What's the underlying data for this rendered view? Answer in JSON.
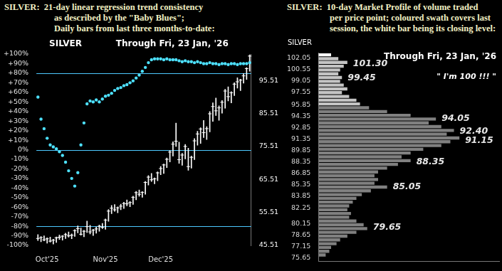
{
  "chart_data": [
    {
      "type": "bar",
      "title": [
        "SILVER:  21-day linear regression trend consistency",
        "as described by the \"Baby Blues\";",
        "Daily bars from last three months-to-date:"
      ],
      "annotations": [
        {
          "text": "SILVER"
        },
        {
          "text": "Through Fri, 23 Jan, '26"
        }
      ],
      "categories": [
        null,
        null,
        null,
        "Oct'25",
        null,
        null,
        null,
        null,
        null,
        null,
        null,
        null,
        null,
        null,
        null,
        null,
        null,
        null,
        null,
        null,
        null,
        null,
        "Nov'25",
        null,
        null,
        null,
        null,
        null,
        null,
        null,
        null,
        null,
        null,
        null,
        null,
        null,
        null,
        null,
        null,
        null,
        "Dec'25",
        null,
        null,
        null,
        null,
        null,
        null,
        null,
        null,
        null,
        null,
        null,
        null,
        null,
        null,
        null,
        null,
        null,
        null,
        null,
        null,
        null,
        null,
        null,
        null,
        null,
        null,
        null,
        null,
        null
      ],
      "series": [
        {
          "type": "bar",
          "axis": "y2",
          "color": "#ffffff",
          "low": [
            47.0,
            46.6,
            46.9,
            46.2,
            46.5,
            45.9,
            46.4,
            47.3,
            47.1,
            47.6,
            48.0,
            47.5,
            48.2,
            49.3,
            48.6,
            48.1,
            49.4,
            49.0,
            48.5,
            49.2,
            49.8,
            50.6,
            50.4,
            52.8,
            55.1,
            55.8,
            55.4,
            56.3,
            56.7,
            57.5,
            57.2,
            57.9,
            59.3,
            60.4,
            60.1,
            61.0,
            63.8,
            64.9,
            64.2,
            65.1,
            66.9,
            67.3,
            69.1,
            70.8,
            72.6,
            75.5,
            70.4,
            69.8,
            71.7,
            68.3,
            68.9,
            71.5,
            75.9,
            76.4,
            78.2,
            77.6,
            79.9,
            83.1,
            84.9,
            83.4,
            85.6,
            87.1,
            89.3,
            88.7,
            90.9,
            93.2,
            92.4,
            94.7,
            95.8,
            98.3
          ],
          "high": [
            48.8,
            48.2,
            48.4,
            47.8,
            48.0,
            47.4,
            48.1,
            48.7,
            48.5,
            49.2,
            49.6,
            49.0,
            50.3,
            51.4,
            50.8,
            50.1,
            52.9,
            51.6,
            50.4,
            51.1,
            51.7,
            52.2,
            53.5,
            56.4,
            57.6,
            57.9,
            57.2,
            58.0,
            58.6,
            59.3,
            58.8,
            60.4,
            61.9,
            62.3,
            61.8,
            64.9,
            66.7,
            67.3,
            66.0,
            67.8,
            69.4,
            70.2,
            72.0,
            74.3,
            76.9,
            82.6,
            76.8,
            73.4,
            76.1,
            75.0,
            72.6,
            77.9,
            80.1,
            81.2,
            83.4,
            81.5,
            86.1,
            88.7,
            90.2,
            87.8,
            89.4,
            92.8,
            93.6,
            92.1,
            94.8,
            96.3,
            95.9,
            97.6,
            99.4,
            103.3
          ],
          "close": [
            47.6,
            47.9,
            47.2,
            47.5,
            46.8,
            47.1,
            47.8,
            48.0,
            48.3,
            48.8,
            48.4,
            48.6,
            50.0,
            50.6,
            48.9,
            49.8,
            51.2,
            49.6,
            50.1,
            50.5,
            51.3,
            51.0,
            53.2,
            55.9,
            56.8,
            56.3,
            56.9,
            57.4,
            58.2,
            58.1,
            58.5,
            60.1,
            61.5,
            61.0,
            61.6,
            64.6,
            66.2,
            65.4,
            65.7,
            67.5,
            68.8,
            69.9,
            71.6,
            73.8,
            76.2,
            77.1,
            71.5,
            72.9,
            75.5,
            69.4,
            72.2,
            77.2,
            79.3,
            80.8,
            79.7,
            80.9,
            85.4,
            87.6,
            86.3,
            87.2,
            88.9,
            92.3,
            90.6,
            91.8,
            94.4,
            95.1,
            95.6,
            96.9,
            99.1,
            102.9
          ]
        },
        {
          "type": "scatter",
          "color": "#4de1ff",
          "marker": "circle",
          "values": [
            55,
            32,
            22,
            12,
            5,
            3,
            1,
            -2,
            -6,
            -13,
            -22,
            -30,
            -38,
            -24,
            5,
            28,
            48,
            51,
            50,
            52,
            50,
            53,
            56,
            57,
            59,
            62,
            64,
            65,
            67,
            68,
            70,
            72,
            75,
            78,
            82,
            86,
            91,
            94,
            95,
            95,
            95,
            94,
            95,
            94,
            94,
            94,
            93,
            92,
            93,
            92,
            92,
            91,
            92,
            91,
            90,
            90,
            91,
            90,
            90,
            89,
            90,
            90,
            89,
            90,
            90,
            89,
            90,
            90,
            90,
            91
          ]
        }
      ],
      "ylim": [
        -100,
        100
      ],
      "yticks": [
        {
          "value": -100,
          "label": "-100%"
        },
        {
          "value": -90,
          "label": "-90%"
        },
        {
          "value": -80,
          "label": "-80%"
        },
        {
          "value": -70,
          "label": "-70%"
        },
        {
          "value": -60,
          "label": "-60%"
        },
        {
          "value": -50,
          "label": "-50%"
        },
        {
          "value": -40,
          "label": "-40%"
        },
        {
          "value": -30,
          "label": "-30%"
        },
        {
          "value": -20,
          "label": "-20%"
        },
        {
          "value": -10,
          "label": "-10%"
        },
        {
          "value": 0,
          "label": "0%"
        },
        {
          "value": 10,
          "label": "+10%"
        },
        {
          "value": 20,
          "label": "+20%"
        },
        {
          "value": 30,
          "label": "+30%"
        },
        {
          "value": 40,
          "label": "+40%"
        },
        {
          "value": 50,
          "label": "+50%"
        },
        {
          "value": 60,
          "label": "+60%"
        },
        {
          "value": 70,
          "label": "+70%"
        },
        {
          "value": 80,
          "label": "+80%"
        },
        {
          "value": 90,
          "label": "+90%"
        },
        {
          "value": 100,
          "label": "+100%"
        }
      ],
      "y2lim": [
        45.51,
        103.51
      ],
      "y2ticks": [
        45.51,
        55.51,
        65.51,
        75.51,
        85.51,
        95.51
      ],
      "hlines": [
        80,
        0,
        -80
      ],
      "grid": false
    },
    {
      "type": "bar",
      "orientation": "horizontal",
      "title": [
        "SILVER:  10-day Market Profile of volume traded",
        "per price point; coloured swath covers last",
        "session, the white bar being its closing level:"
      ],
      "annotations": [
        {
          "text": "SILVER"
        },
        {
          "text": "Through Fri, 23 Jan, '26"
        },
        {
          "text": "\" I'm 100 !!! \""
        }
      ],
      "y": [
        102.5,
        102.0,
        101.5,
        101.0,
        100.5,
        100.0,
        99.5,
        99.0,
        98.5,
        98.0,
        97.5,
        97.0,
        96.5,
        96.0,
        95.5,
        95.0,
        94.5,
        94.0,
        93.5,
        93.0,
        92.5,
        92.0,
        91.5,
        91.0,
        90.5,
        90.0,
        89.5,
        89.0,
        88.5,
        88.0,
        87.5,
        87.0,
        86.5,
        86.0,
        85.5,
        85.0,
        84.5,
        84.0,
        83.5,
        83.0,
        82.5,
        82.0,
        81.5,
        81.0,
        80.5,
        80.0,
        79.5,
        79.0,
        78.5,
        78.0,
        77.5,
        77.0,
        76.5,
        76.0
      ],
      "values": [
        7,
        11,
        16,
        14,
        12,
        11,
        13,
        12,
        14,
        16,
        13,
        17,
        21,
        23,
        28,
        38,
        51,
        65,
        61,
        68,
        75,
        71,
        78,
        73,
        68,
        58,
        51,
        46,
        51,
        44,
        38,
        33,
        31,
        33,
        31,
        38,
        29,
        24,
        21,
        19,
        17,
        16,
        18,
        17,
        21,
        25,
        27,
        21,
        16,
        12,
        10,
        7,
        6,
        4
      ],
      "colors": [
        "#ffffff",
        "#c4c4c4",
        "#c4c4c4",
        "#c4c4c4",
        "#c4c4c4",
        "#c4c4c4",
        "#c4c4c4",
        "#c4c4c4",
        "#c4c4c4",
        "#c4c4c4",
        "#c4c4c4",
        "#c4c4c4",
        "#c4c4c4",
        "#c4c4c4",
        "#808080",
        "#808080",
        "#808080",
        "#808080",
        "#808080",
        "#808080",
        "#808080",
        "#808080",
        "#808080",
        "#808080",
        "#808080",
        "#808080",
        "#808080",
        "#808080",
        "#808080",
        "#808080",
        "#808080",
        "#808080",
        "#808080",
        "#808080",
        "#808080",
        "#808080",
        "#808080",
        "#808080",
        "#808080",
        "#808080",
        "#808080",
        "#808080",
        "#808080",
        "#808080",
        "#808080",
        "#808080",
        "#808080",
        "#808080",
        "#808080",
        "#808080",
        "#808080",
        "#808080",
        "#808080",
        "#808080"
      ],
      "ylim": [
        75.2,
        102.8
      ],
      "yticks": [
        75.65,
        77.15,
        78.65,
        80.15,
        82.25,
        83.85,
        85.35,
        86.85,
        88.35,
        89.85,
        91.35,
        92.85,
        94.35,
        95.85,
        97.55,
        99.05,
        100.55,
        102.05
      ],
      "xlim": [
        0,
        100
      ],
      "tick_labels": "y",
      "grid": false,
      "level_labels": [
        {
          "value": 101.3,
          "label": "101.30"
        },
        {
          "value": 99.45,
          "label": "99.45"
        },
        {
          "value": 94.05,
          "label": "94.05"
        },
        {
          "value": 92.4,
          "label": "92.40"
        },
        {
          "value": 91.15,
          "label": "91.15"
        },
        {
          "value": 88.35,
          "label": "88.35"
        },
        {
          "value": 85.05,
          "label": "85.05"
        },
        {
          "value": 79.65,
          "label": "79.65"
        }
      ]
    }
  ]
}
